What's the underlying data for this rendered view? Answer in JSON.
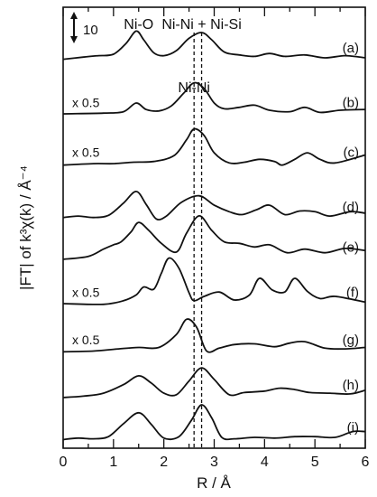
{
  "chart_data": {
    "type": "line",
    "xlabel": "R / Å",
    "ylabel": "|FT| of k³χ(k) / Å⁻⁴",
    "xlim": [
      0,
      6
    ],
    "xticks": [
      "0",
      "1",
      "2",
      "3",
      "4",
      "5",
      "6"
    ],
    "grid": false,
    "scale_bar": {
      "label": "10",
      "value": 10
    },
    "annotations": [
      {
        "text": "Ni-O",
        "x": 1.5
      },
      {
        "text": "Ni-Ni + Ni-Si",
        "x": 2.75
      },
      {
        "text": "Ni-Ni",
        "x": 2.6
      }
    ],
    "reference_lines": [
      2.6,
      2.75
    ],
    "series": [
      {
        "label": "(a)",
        "scale_note": "",
        "baseline_offset": 8.0,
        "points": [
          [
            0,
            0.3
          ],
          [
            0.4,
            0.6
          ],
          [
            0.7,
            0.8
          ],
          [
            1.0,
            1.0
          ],
          [
            1.25,
            2.5
          ],
          [
            1.45,
            4.2
          ],
          [
            1.6,
            3.0
          ],
          [
            1.8,
            1.2
          ],
          [
            2.0,
            0.8
          ],
          [
            2.25,
            1.5
          ],
          [
            2.5,
            3.2
          ],
          [
            2.75,
            4.0
          ],
          [
            2.95,
            3.0
          ],
          [
            3.2,
            1.3
          ],
          [
            3.5,
            0.9
          ],
          [
            3.8,
            0.7
          ],
          [
            4.1,
            1.1
          ],
          [
            4.4,
            0.7
          ],
          [
            4.8,
            0.9
          ],
          [
            5.2,
            0.5
          ],
          [
            5.6,
            0.8
          ],
          [
            6.0,
            0.5
          ]
        ]
      },
      {
        "label": "(b)",
        "scale_note": "x 0.5",
        "baseline_offset": 6.85,
        "points": [
          [
            0,
            0.3
          ],
          [
            0.8,
            0.4
          ],
          [
            1.2,
            0.6
          ],
          [
            1.45,
            1.8
          ],
          [
            1.65,
            0.9
          ],
          [
            1.9,
            0.7
          ],
          [
            2.15,
            1.4
          ],
          [
            2.4,
            3.2
          ],
          [
            2.6,
            4.6
          ],
          [
            2.8,
            3.8
          ],
          [
            3.0,
            1.8
          ],
          [
            3.2,
            1.0
          ],
          [
            3.5,
            1.2
          ],
          [
            3.8,
            1.5
          ],
          [
            4.1,
            0.8
          ],
          [
            4.5,
            0.6
          ],
          [
            4.8,
            1.2
          ],
          [
            5.1,
            0.5
          ],
          [
            5.5,
            0.8
          ],
          [
            6.0,
            0.9
          ]
        ]
      },
      {
        "label": "(c)",
        "scale_note": "x 0.5",
        "baseline_offset": 5.8,
        "points": [
          [
            0,
            0.1
          ],
          [
            0.6,
            0.3
          ],
          [
            1.0,
            0.3
          ],
          [
            1.4,
            0.5
          ],
          [
            1.8,
            0.6
          ],
          [
            2.2,
            1.4
          ],
          [
            2.45,
            3.6
          ],
          [
            2.6,
            5.1
          ],
          [
            2.8,
            4.2
          ],
          [
            3.0,
            1.8
          ],
          [
            3.3,
            0.4
          ],
          [
            3.6,
            0.5
          ],
          [
            3.9,
            0.9
          ],
          [
            4.2,
            0.6
          ],
          [
            4.35,
            0.1
          ],
          [
            4.6,
            0.9
          ],
          [
            4.85,
            1.8
          ],
          [
            5.1,
            0.9
          ],
          [
            5.4,
            0.4
          ],
          [
            6.0,
            1.5
          ]
        ]
      },
      {
        "label": "(d)",
        "scale_note": "",
        "baseline_offset": 4.65,
        "points": [
          [
            0,
            0.4
          ],
          [
            0.3,
            0.6
          ],
          [
            0.6,
            0.4
          ],
          [
            0.9,
            0.7
          ],
          [
            1.2,
            2.4
          ],
          [
            1.45,
            4.0
          ],
          [
            1.65,
            2.2
          ],
          [
            1.85,
            0.2
          ],
          [
            2.05,
            0.6
          ],
          [
            2.35,
            2.5
          ],
          [
            2.7,
            3.4
          ],
          [
            3.0,
            2.1
          ],
          [
            3.3,
            1.2
          ],
          [
            3.55,
            0.8
          ],
          [
            3.85,
            1.5
          ],
          [
            4.1,
            2.1
          ],
          [
            4.4,
            0.8
          ],
          [
            4.7,
            1.3
          ],
          [
            5.0,
            1.2
          ],
          [
            5.3,
            0.6
          ],
          [
            5.7,
            1.2
          ],
          [
            6.0,
            1.0
          ]
        ]
      },
      {
        "label": "(e)",
        "scale_note": "",
        "baseline_offset": 3.8,
        "points": [
          [
            0,
            0.2
          ],
          [
            0.5,
            0.6
          ],
          [
            0.8,
            1.6
          ],
          [
            1.0,
            2.2
          ],
          [
            1.15,
            2.6
          ],
          [
            1.35,
            4.0
          ],
          [
            1.5,
            5.3
          ],
          [
            1.7,
            4.2
          ],
          [
            1.95,
            2.4
          ],
          [
            2.25,
            1.2
          ],
          [
            2.45,
            3.8
          ],
          [
            2.7,
            6.2
          ],
          [
            2.95,
            4.2
          ],
          [
            3.2,
            2.6
          ],
          [
            3.5,
            2.4
          ],
          [
            3.8,
            1.9
          ],
          [
            4.1,
            2.2
          ],
          [
            4.45,
            1.1
          ],
          [
            4.8,
            1.6
          ],
          [
            5.2,
            1.1
          ],
          [
            5.6,
            1.7
          ],
          [
            6.0,
            1.4
          ]
        ]
      },
      {
        "label": "(f)",
        "scale_note": "x 0.5",
        "baseline_offset": 2.85,
        "points": [
          [
            0,
            0.3
          ],
          [
            0.8,
            0.2
          ],
          [
            1.2,
            0.7
          ],
          [
            1.45,
            1.5
          ],
          [
            1.6,
            2.6
          ],
          [
            1.8,
            2.3
          ],
          [
            1.95,
            4.5
          ],
          [
            2.1,
            6.6
          ],
          [
            2.3,
            5.2
          ],
          [
            2.5,
            1.8
          ],
          [
            2.6,
            0.7
          ],
          [
            2.8,
            1.3
          ],
          [
            3.1,
            1.9
          ],
          [
            3.4,
            0.8
          ],
          [
            3.7,
            1.5
          ],
          [
            3.9,
            3.8
          ],
          [
            4.15,
            2.2
          ],
          [
            4.4,
            1.9
          ],
          [
            4.6,
            3.8
          ],
          [
            4.85,
            2.0
          ],
          [
            5.1,
            1.0
          ],
          [
            5.4,
            1.3
          ],
          [
            6.0,
            0.5
          ]
        ]
      },
      {
        "label": "(g)",
        "scale_note": "x 0.5",
        "baseline_offset": 1.85,
        "points": [
          [
            0,
            0.2
          ],
          [
            0.6,
            0.3
          ],
          [
            1.1,
            0.6
          ],
          [
            1.5,
            0.8
          ],
          [
            1.9,
            0.8
          ],
          [
            2.25,
            2.6
          ],
          [
            2.45,
            4.7
          ],
          [
            2.65,
            3.6
          ],
          [
            2.85,
            0.3
          ],
          [
            3.1,
            0.7
          ],
          [
            3.4,
            1.2
          ],
          [
            3.8,
            1.3
          ],
          [
            4.2,
            0.9
          ],
          [
            4.5,
            1.4
          ],
          [
            4.8,
            1.6
          ],
          [
            5.2,
            0.7
          ],
          [
            5.6,
            0.6
          ],
          [
            6.0,
            0.8
          ]
        ]
      },
      {
        "label": "(h)",
        "scale_note": "",
        "baseline_offset": 0.9,
        "points": [
          [
            0,
            0.1
          ],
          [
            0.4,
            0.3
          ],
          [
            0.8,
            0.7
          ],
          [
            1.2,
            1.9
          ],
          [
            1.5,
            3.1
          ],
          [
            1.75,
            2.1
          ],
          [
            2.0,
            0.7
          ],
          [
            2.25,
            0.5
          ],
          [
            2.5,
            2.4
          ],
          [
            2.75,
            4.2
          ],
          [
            3.0,
            2.6
          ],
          [
            3.3,
            0.5
          ],
          [
            3.6,
            0.8
          ],
          [
            4.0,
            1.0
          ],
          [
            4.3,
            1.4
          ],
          [
            4.6,
            1.2
          ],
          [
            4.9,
            0.8
          ],
          [
            5.3,
            0.7
          ],
          [
            5.7,
            0.6
          ],
          [
            6.0,
            1.1
          ]
        ]
      },
      {
        "label": "(i)",
        "scale_note": "",
        "baseline_offset": 0.0,
        "points": [
          [
            0,
            0.2
          ],
          [
            0.3,
            0.4
          ],
          [
            0.6,
            0.3
          ],
          [
            0.9,
            0.6
          ],
          [
            1.2,
            2.4
          ],
          [
            1.5,
            3.9
          ],
          [
            1.75,
            2.3
          ],
          [
            2.0,
            0.4
          ],
          [
            2.3,
            0.6
          ],
          [
            2.55,
            2.9
          ],
          [
            2.75,
            5.0
          ],
          [
            2.95,
            3.2
          ],
          [
            3.15,
            0.5
          ],
          [
            3.4,
            0.3
          ],
          [
            3.8,
            0.5
          ],
          [
            4.2,
            0.4
          ],
          [
            4.6,
            0.6
          ],
          [
            5.0,
            0.6
          ],
          [
            5.4,
            0.5
          ],
          [
            5.75,
            1.3
          ],
          [
            6.0,
            1.3
          ]
        ]
      }
    ]
  }
}
